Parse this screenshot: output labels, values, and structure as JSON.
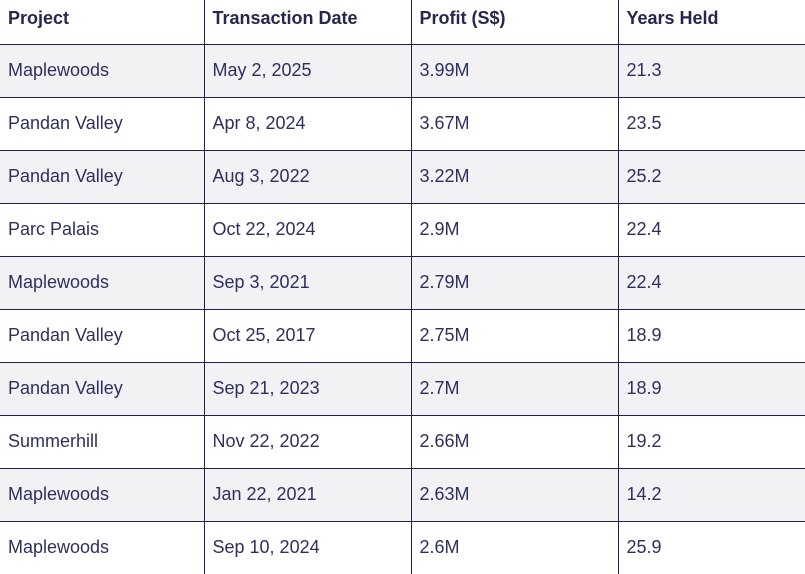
{
  "table": {
    "headers": [
      "Project",
      "Transaction Date",
      "Profit (S$)",
      "Years Held"
    ],
    "rows": [
      [
        "Maplewoods",
        "May 2, 2025",
        "3.99M",
        "21.3"
      ],
      [
        "Pandan Valley",
        "Apr 8, 2024",
        "3.67M",
        "23.5"
      ],
      [
        "Pandan Valley",
        "Aug 3, 2022",
        "3.22M",
        "25.2"
      ],
      [
        "Parc Palais",
        "Oct 22, 2024",
        "2.9M",
        "22.4"
      ],
      [
        "Maplewoods",
        "Sep 3, 2021",
        "2.79M",
        "22.4"
      ],
      [
        "Pandan Valley",
        "Oct 25, 2017",
        "2.75M",
        "18.9"
      ],
      [
        "Pandan Valley",
        "Sep 21, 2023",
        "2.7M",
        "18.9"
      ],
      [
        "Summerhill",
        "Nov 22, 2022",
        "2.66M",
        "19.2"
      ],
      [
        "Maplewoods",
        "Jan 22, 2021",
        "2.63M",
        "14.2"
      ],
      [
        "Maplewoods",
        "Sep 10, 2024",
        "2.6M",
        "25.9"
      ]
    ]
  },
  "colors": {
    "text": "#2f2f5e",
    "border": "#1f1f4a",
    "stripe": "#f2f2f4"
  }
}
